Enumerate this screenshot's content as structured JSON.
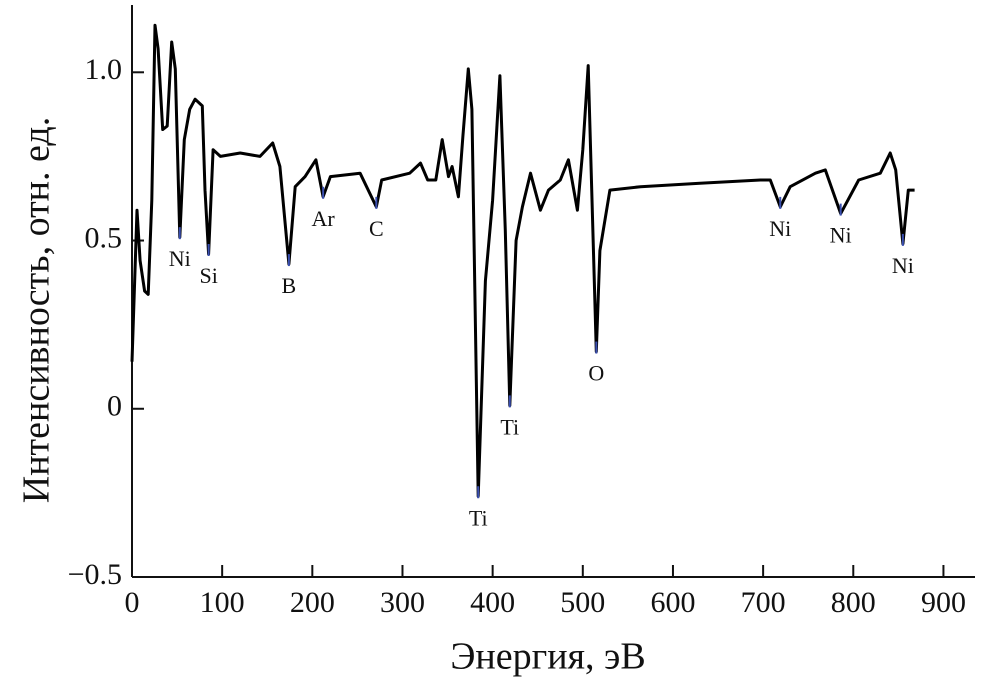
{
  "chart_data": {
    "type": "line",
    "xlabel": "Энергия, эВ",
    "ylabel": "Интенсивность, отн. ед.",
    "x": [
      0,
      5.5,
      9,
      14,
      18,
      22,
      25.5,
      29,
      34,
      39,
      44,
      48,
      53,
      58,
      64,
      70,
      78,
      81,
      85,
      90,
      98,
      120,
      142,
      156,
      164,
      174,
      181,
      192,
      204,
      212,
      220,
      253,
      271,
      277,
      308,
      320,
      328,
      337,
      344,
      351,
      355,
      362,
      367,
      373,
      377,
      384,
      392,
      400,
      408,
      414,
      419,
      426,
      433,
      442,
      453,
      462,
      475,
      484,
      494,
      500,
      506,
      515,
      519,
      530,
      564,
      630,
      697,
      708,
      719,
      730,
      758,
      769,
      786,
      806,
      830,
      841,
      847,
      855,
      861,
      868
    ],
    "series": [
      {
        "color": "#000000",
        "values": [
          0.14,
          0.59,
          0.44,
          0.35,
          0.34,
          0.62,
          1.14,
          1.07,
          0.83,
          0.84,
          1.09,
          1.01,
          0.51,
          0.8,
          0.89,
          0.92,
          0.9,
          0.65,
          0.46,
          0.77,
          0.75,
          0.76,
          0.75,
          0.79,
          0.72,
          0.43,
          0.66,
          0.69,
          0.74,
          0.63,
          0.69,
          0.7,
          0.6,
          0.68,
          0.7,
          0.73,
          0.68,
          0.68,
          0.8,
          0.69,
          0.72,
          0.63,
          0.81,
          1.01,
          0.89,
          -0.26,
          0.38,
          0.62,
          0.99,
          0.53,
          0.01,
          0.5,
          0.6,
          0.7,
          0.59,
          0.65,
          0.68,
          0.74,
          0.59,
          0.77,
          1.02,
          0.17,
          0.47,
          0.65,
          0.66,
          0.67,
          0.68,
          0.68,
          0.6,
          0.66,
          0.7,
          0.71,
          0.58,
          0.68,
          0.7,
          0.76,
          0.71,
          0.49,
          0.65,
          0.65
        ]
      }
    ],
    "annotations": [
      {
        "text": "Ni",
        "x": 53,
        "y": 0.51
      },
      {
        "text": "Si",
        "x": 85,
        "y": 0.46
      },
      {
        "text": "B",
        "x": 174,
        "y": 0.43
      },
      {
        "text": "Ar",
        "x": 212,
        "y": 0.63
      },
      {
        "text": "C",
        "x": 271,
        "y": 0.6
      },
      {
        "text": "Ti",
        "x": 384,
        "y": -0.26
      },
      {
        "text": "Ti",
        "x": 419,
        "y": 0.01
      },
      {
        "text": "O",
        "x": 515,
        "y": 0.17
      },
      {
        "text": "Ni",
        "x": 719,
        "y": 0.6
      },
      {
        "text": "Ni",
        "x": 786,
        "y": 0.58
      },
      {
        "text": "Ni",
        "x": 855,
        "y": 0.49
      }
    ],
    "marker_color": "#3a4fb0",
    "xlim": [
      0,
      935
    ],
    "ylim": [
      -0.5,
      1.2
    ],
    "xticks": [
      0,
      100,
      200,
      300,
      400,
      500,
      600,
      700,
      800,
      900
    ],
    "yticks": [
      {
        "value": -0.5,
        "label": "−0.5"
      },
      0,
      0.5,
      {
        "value": 1,
        "label": "1.0"
      }
    ]
  }
}
